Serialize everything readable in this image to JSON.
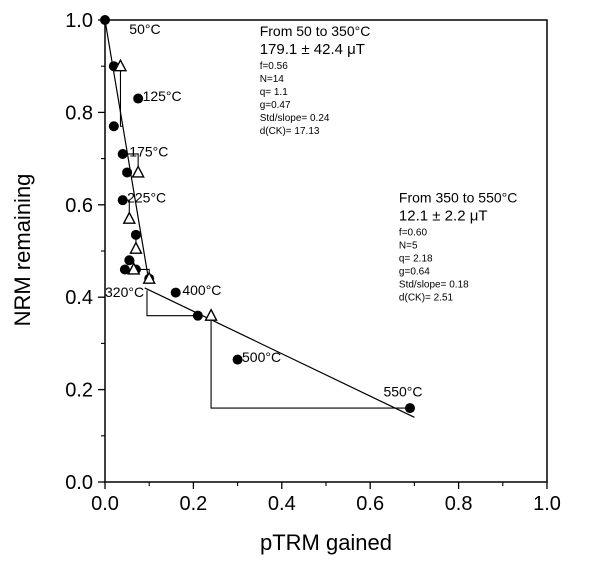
{
  "chart_data": {
    "type": "scatter",
    "title": "",
    "xlabel": "pTRM gained",
    "ylabel": "NRM remaining",
    "xlim": [
      0,
      1
    ],
    "ylim": [
      0,
      1
    ],
    "x_ticks": [
      "0.0",
      "0.2",
      "0.4",
      "0.6",
      "0.8",
      "1.0"
    ],
    "y_ticks": [
      "0.0",
      "0.2",
      "0.4",
      "0.6",
      "0.8",
      "1.0"
    ],
    "grid": false,
    "legend": "none",
    "points": [
      {
        "x": 0.0,
        "y": 1.0
      },
      {
        "x": 0.02,
        "y": 0.9
      },
      {
        "x": 0.02,
        "y": 0.77
      },
      {
        "x": 0.075,
        "y": 0.83
      },
      {
        "x": 0.04,
        "y": 0.71
      },
      {
        "x": 0.05,
        "y": 0.67
      },
      {
        "x": 0.04,
        "y": 0.61
      },
      {
        "x": 0.07,
        "y": 0.535
      },
      {
        "x": 0.055,
        "y": 0.48
      },
      {
        "x": 0.07,
        "y": 0.46
      },
      {
        "x": 0.045,
        "y": 0.46
      },
      {
        "x": 0.1,
        "y": 0.44
      },
      {
        "x": 0.16,
        "y": 0.41
      },
      {
        "x": 0.21,
        "y": 0.36
      },
      {
        "x": 0.3,
        "y": 0.265
      },
      {
        "x": 0.69,
        "y": 0.16
      }
    ],
    "checks": [
      {
        "x": 0.035,
        "y": 0.9
      },
      {
        "x": 0.075,
        "y": 0.67
      },
      {
        "x": 0.055,
        "y": 0.57
      },
      {
        "x": 0.07,
        "y": 0.505
      },
      {
        "x": 0.065,
        "y": 0.46
      },
      {
        "x": 0.1,
        "y": 0.44
      },
      {
        "x": 0.24,
        "y": 0.36
      }
    ],
    "check_paths": [
      [
        [
          0.035,
          0.9
        ],
        [
          0.035,
          0.77
        ],
        [
          0.04,
          0.77
        ]
      ],
      [
        [
          0.075,
          0.67
        ],
        [
          0.075,
          0.71
        ],
        [
          0.04,
          0.71
        ]
      ],
      [
        [
          0.055,
          0.57
        ],
        [
          0.055,
          0.61
        ],
        [
          0.04,
          0.61
        ]
      ],
      [
        [
          0.07,
          0.505
        ],
        [
          0.07,
          0.535
        ]
      ],
      [
        [
          0.065,
          0.46
        ],
        [
          0.065,
          0.48
        ],
        [
          0.055,
          0.48
        ]
      ],
      [
        [
          0.1,
          0.44
        ],
        [
          0.1,
          0.46
        ],
        [
          0.07,
          0.46
        ]
      ],
      [
        [
          0.095,
          0.415
        ],
        [
          0.095,
          0.36
        ],
        [
          0.21,
          0.36
        ]
      ],
      [
        [
          0.24,
          0.36
        ],
        [
          0.24,
          0.16
        ],
        [
          0.69,
          0.16
        ]
      ]
    ],
    "fit_lines": [
      {
        "from": [
          0.0,
          1.0
        ],
        "to": [
          0.1,
          0.43
        ]
      },
      {
        "from": [
          0.09,
          0.42
        ],
        "to": [
          0.7,
          0.14
        ]
      }
    ],
    "temperature_labels": [
      {
        "text": "50°C",
        "x": 0.055,
        "y": 0.97
      },
      {
        "text": "125°C",
        "x": 0.085,
        "y": 0.825
      },
      {
        "text": "175°C",
        "x": 0.055,
        "y": 0.705
      },
      {
        "text": "225°C",
        "x": 0.05,
        "y": 0.605
      },
      {
        "text": "320°C",
        "x": 0.0,
        "y": 0.4
      },
      {
        "text": "400°C",
        "x": 0.175,
        "y": 0.405
      },
      {
        "text": "500°C",
        "x": 0.31,
        "y": 0.26
      },
      {
        "text": "550°C",
        "x": 0.63,
        "y": 0.185
      }
    ],
    "annotations": [
      {
        "x": 0.35,
        "y": 0.965,
        "heading": "From 50 to 350°C",
        "value": "179.1 ± 42.4 μT",
        "stats": [
          "f=0.56",
          "N=14",
          "q= 1.1",
          "g=0.47",
          "Std/slope= 0.24",
          "d(CK)= 17.13"
        ]
      },
      {
        "x": 0.665,
        "y": 0.605,
        "heading": "From 350 to 550°C",
        "value": "12.1 ± 2.2 μT",
        "stats": [
          "f=0.60",
          "N=5",
          "q= 2.18",
          "g=0.64",
          "Std/slope= 0.18",
          "d(CK)= 2.51"
        ]
      }
    ]
  }
}
